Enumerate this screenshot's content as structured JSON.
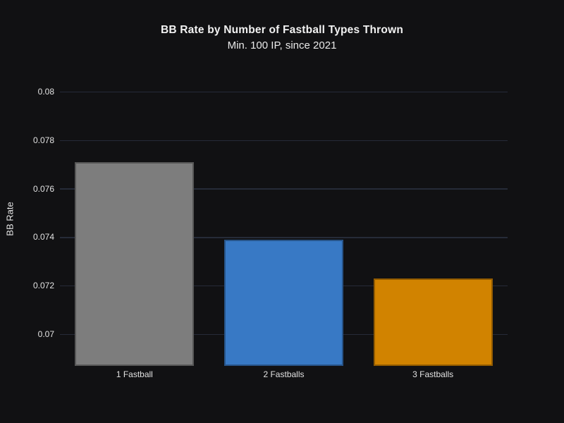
{
  "page": {
    "background": "#111113"
  },
  "chart_data": {
    "type": "bar",
    "title": "BB Rate by Number of Fastball Types Thrown",
    "subtitle": "Min. 100 IP, since 2021",
    "xlabel": "",
    "ylabel": "BB Rate",
    "categories": [
      "1 Fastball",
      "2 Fastballs",
      "3 Fastballs"
    ],
    "values": [
      0.0771,
      0.0739,
      0.0723
    ],
    "bar_colors": [
      "#7d7d7d",
      "#3879c5",
      "#d18300"
    ],
    "ylim": [
      0.0687,
      0.0806
    ],
    "yticks": [
      0.07,
      0.072,
      0.074,
      0.076,
      0.078,
      0.08
    ],
    "ytick_labels": [
      "0.07",
      "0.072",
      "0.074",
      "0.076",
      "0.078",
      "0.08"
    ],
    "grid": true,
    "legend_position": "none",
    "bar_width_frac": 0.8,
    "colors": {
      "background": "#111113",
      "gridline": "#262b38",
      "text": "#ebebeb",
      "bar_edge": "rgba(0,0,0,0.30)"
    }
  }
}
